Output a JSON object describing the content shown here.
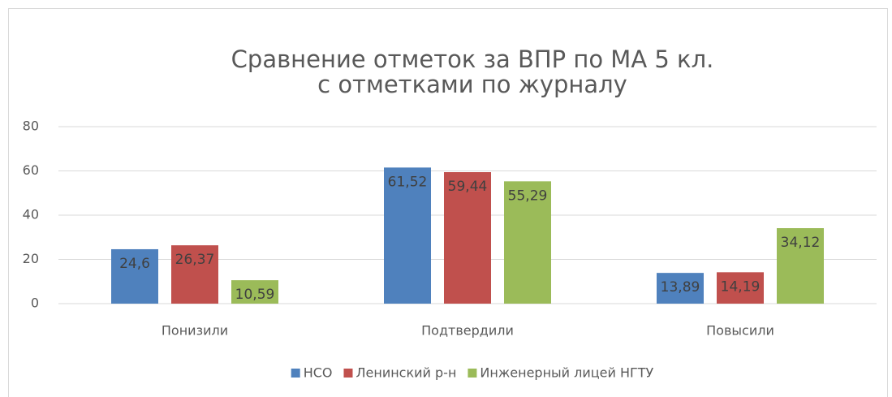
{
  "chart_data": {
    "type": "bar",
    "title": [
      "Сравнение отметок за ВПР по МА 5 кл.",
      "с отметками по журналу"
    ],
    "categories": [
      "Понизили",
      "Подтвердили",
      "Повысили"
    ],
    "series": [
      {
        "name": "НСО",
        "color": "#4f81bd",
        "values": [
          24.6,
          61.52,
          13.89
        ],
        "value_labels": [
          "24,6",
          "61,52",
          "13,89"
        ]
      },
      {
        "name": "Ленинский р-н",
        "color": "#c0504d",
        "values": [
          26.37,
          59.44,
          14.19
        ],
        "value_labels": [
          "26,37",
          "59,44",
          "14,19"
        ]
      },
      {
        "name": "Инженерный лицей НГТУ",
        "color": "#9bbb59",
        "values": [
          10.59,
          55.29,
          34.12
        ],
        "value_labels": [
          "10,59",
          "55,29",
          "34,12"
        ]
      }
    ],
    "ylim": [
      0,
      80
    ],
    "yticks": [
      0,
      20,
      40,
      60,
      80
    ],
    "grid": true,
    "legend": "bottom"
  }
}
